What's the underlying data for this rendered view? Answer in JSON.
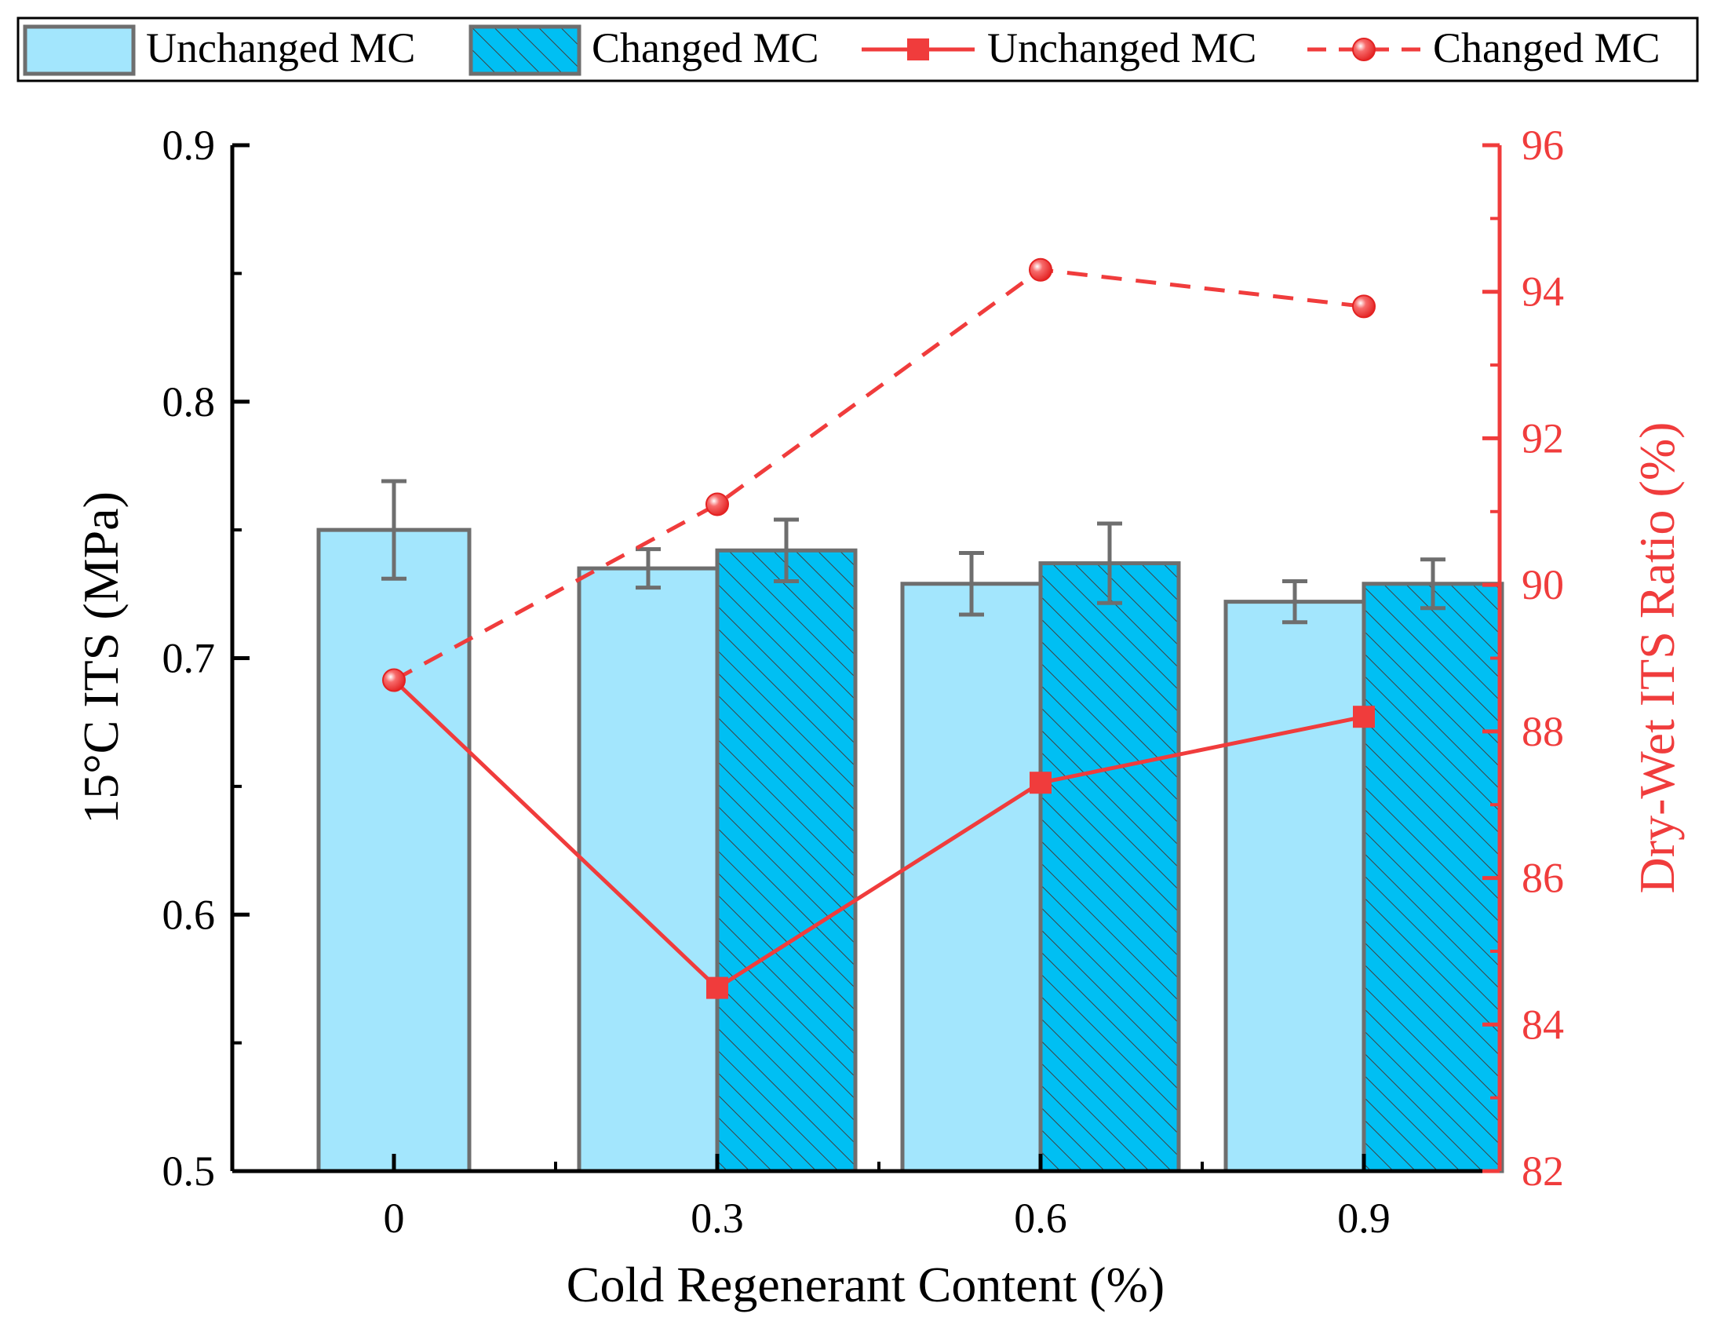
{
  "chart_data": {
    "type": "bar",
    "title": "",
    "xlabel": "Cold Regenerant Content (%)",
    "ylabel": "15°C  ITS (MPa)",
    "y2label": "Dry-Wet  ITS  Ratio (%)",
    "categories": [
      "0",
      "0.3",
      "0.6",
      "0.9"
    ],
    "ylim": [
      0.5,
      0.9
    ],
    "y2lim": [
      82,
      96
    ],
    "yticks": [
      "0.5",
      "0.6",
      "0.7",
      "0.8",
      "0.9"
    ],
    "y2ticks": [
      "82",
      "84",
      "86",
      "88",
      "90",
      "92",
      "94",
      "96"
    ],
    "grid": false,
    "legend_position": "top",
    "bar_series": [
      {
        "name": "Unchanged MC",
        "values": [
          0.75,
          0.735,
          0.729,
          0.722
        ],
        "errors": [
          0.019,
          0.0075,
          0.012,
          0.008
        ],
        "color": "#a3e6fd",
        "pattern": "solid"
      },
      {
        "name": "Changed MC",
        "values": [
          null,
          0.742,
          0.737,
          0.729
        ],
        "errors": [
          null,
          0.012,
          0.0155,
          0.0095
        ],
        "color": "#00bff3",
        "pattern": "hatched"
      }
    ],
    "line_series": [
      {
        "name": "Unchanged MC",
        "axis": "right",
        "values": [
          88.7,
          84.5,
          87.3,
          88.2
        ],
        "color": "#f03c3c",
        "style": "solid",
        "marker": "square"
      },
      {
        "name": "Changed MC",
        "axis": "right",
        "values": [
          88.7,
          91.1,
          94.3,
          93.8
        ],
        "color": "#f03c3c",
        "style": "dashed",
        "marker": "circle"
      }
    ]
  }
}
